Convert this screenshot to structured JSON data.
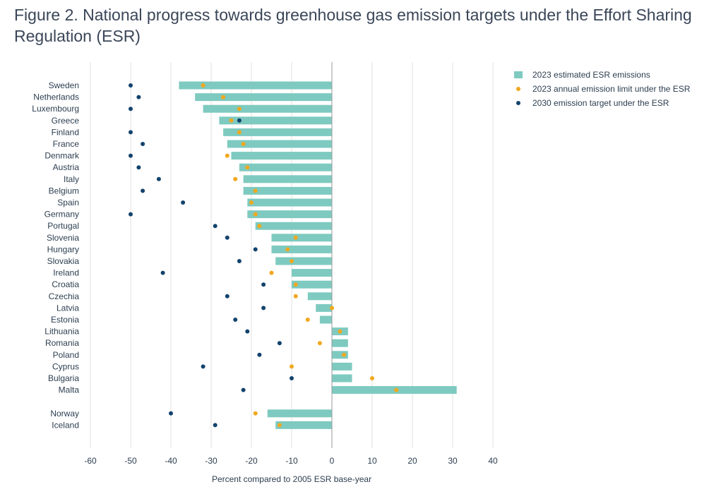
{
  "figure": {
    "title": "Figure 2. National progress towards greenhouse gas emission targets under the Effort Sharing Regulation (ESR)"
  },
  "colors": {
    "bar": "#7ecac0",
    "limit": "#f0a81e",
    "target": "#12436d",
    "grid": "#e0e0e0",
    "zero_line": "#9a9a9a"
  },
  "chart_data": {
    "type": "bar",
    "orientation": "horizontal",
    "xlabel": "Percent compared to 2005 ESR base-year",
    "xlim": [
      -60,
      40
    ],
    "xticks": [
      -60,
      -50,
      -40,
      -30,
      -20,
      -10,
      0,
      10,
      20,
      30,
      40
    ],
    "grid": true,
    "legend_position": "top-right",
    "categories": [
      "Sweden",
      "Netherlands",
      "Luxembourg",
      "Greece",
      "Finland",
      "France",
      "Denmark",
      "Austria",
      "Italy",
      "Belgium",
      "Spain",
      "Germany",
      "Portugal",
      "Slovenia",
      "Hungary",
      "Slovakia",
      "Ireland",
      "Croatia",
      "Czechia",
      "Latvia",
      "Estonia",
      "Lithuania",
      "Romania",
      "Poland",
      "Cyprus",
      "Bulgaria",
      "Malta",
      "",
      "Norway",
      "Iceland"
    ],
    "series": [
      {
        "name": "2023 estimated ESR emissions",
        "kind": "bar",
        "values": [
          -38,
          -34,
          -32,
          -28,
          -27,
          -26,
          -25,
          -23,
          -22,
          -22,
          -21,
          -21,
          -19,
          -15,
          -15,
          -14,
          -10,
          -10,
          -6,
          -4,
          -3,
          4,
          4,
          4,
          5,
          5,
          31,
          null,
          -16,
          -14
        ]
      },
      {
        "name": "2023 annual emission limit under the ESR",
        "kind": "point",
        "values": [
          -32,
          -27,
          -23,
          -25,
          -23,
          -22,
          -26,
          -21,
          -24,
          -19,
          -20,
          -19,
          -18,
          -9,
          -11,
          -10,
          -15,
          -9,
          -9,
          0,
          -6,
          2,
          -3,
          3,
          -10,
          10,
          16,
          null,
          -19,
          -13
        ]
      },
      {
        "name": "2030 emission target under the ESR",
        "kind": "point",
        "values": [
          -50,
          -48,
          -50,
          -23,
          -50,
          -47,
          -50,
          -48,
          -43,
          -47,
          -37,
          -50,
          -29,
          -26,
          -19,
          -23,
          -42,
          -17,
          -26,
          -17,
          -24,
          -21,
          -13,
          -18,
          -32,
          -10,
          -22,
          null,
          -40,
          -29
        ]
      }
    ]
  }
}
